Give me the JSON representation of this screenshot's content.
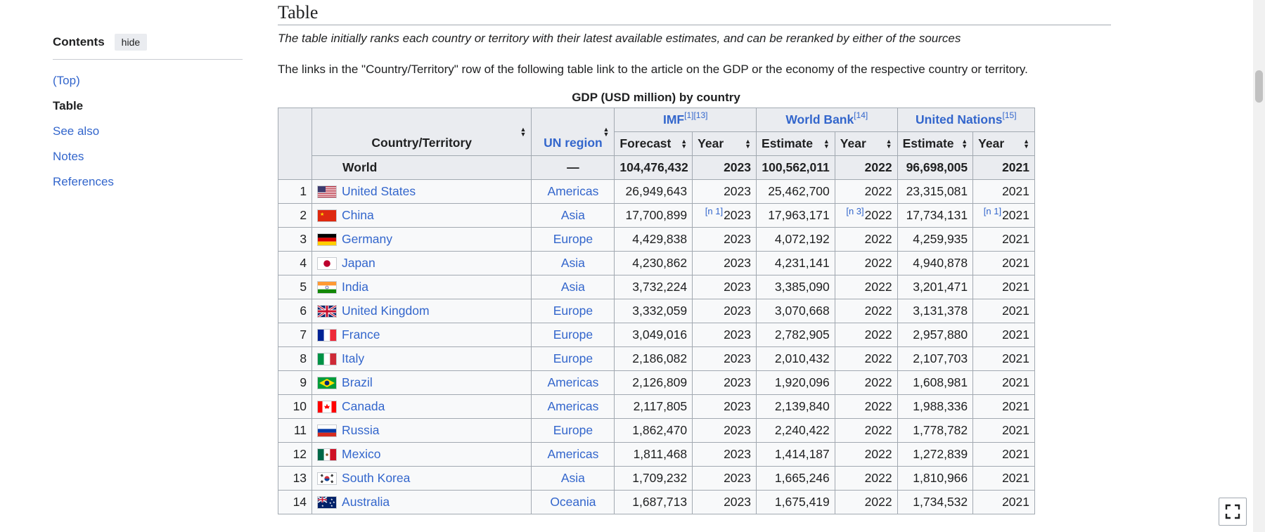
{
  "toc": {
    "title": "Contents",
    "hide_label": "hide",
    "items": [
      {
        "label": "(Top)",
        "state": "normal"
      },
      {
        "label": "Table",
        "state": "active"
      },
      {
        "label": "See also",
        "state": "normal"
      },
      {
        "label": "Notes",
        "state": "normal"
      },
      {
        "label": "References",
        "state": "normal"
      }
    ]
  },
  "article": {
    "heading": "Table",
    "hatnote": "The table initially ranks each country or territory with their latest available estimates, and can be reranked by either of the sources",
    "intro": "The links in the \"Country/Territory\" row of the following table link to the article on the GDP or the economy of the respective country or territory.",
    "caption": "GDP (USD million) by country"
  },
  "table": {
    "headers": {
      "country": "Country/Territory",
      "region": "UN region",
      "imf": "IMF",
      "imf_refs": "[1][13]",
      "wb": "World Bank",
      "wb_refs": "[14]",
      "un": "United Nations",
      "un_refs": "[15]",
      "imf_value": "Forecast",
      "wb_value": "Estimate",
      "un_value": "Estimate",
      "year": "Year"
    },
    "world": {
      "country": "World",
      "region": "—",
      "imf": "104,476,432",
      "imf_year": "2023",
      "wb": "100,562,011",
      "wb_year": "2022",
      "un": "96,698,005",
      "un_year": "2021"
    },
    "rows": [
      {
        "rank": "1",
        "flag": "us",
        "country": "United States",
        "region": "Americas",
        "imf": "26,949,643",
        "imf_note": "",
        "imf_year": "2023",
        "wb": "25,462,700",
        "wb_note": "",
        "wb_year": "2022",
        "un": "23,315,081",
        "un_note": "",
        "un_year": "2021"
      },
      {
        "rank": "2",
        "flag": "cn",
        "country": "China",
        "region": "Asia",
        "imf": "17,700,899",
        "imf_note": "[n 1]",
        "imf_year": "2023",
        "wb": "17,963,171",
        "wb_note": "[n 3]",
        "wb_year": "2022",
        "un": "17,734,131",
        "un_note": "[n 1]",
        "un_year": "2021"
      },
      {
        "rank": "3",
        "flag": "de",
        "country": "Germany",
        "region": "Europe",
        "imf": "4,429,838",
        "imf_note": "",
        "imf_year": "2023",
        "wb": "4,072,192",
        "wb_note": "",
        "wb_year": "2022",
        "un": "4,259,935",
        "un_note": "",
        "un_year": "2021"
      },
      {
        "rank": "4",
        "flag": "jp",
        "country": "Japan",
        "region": "Asia",
        "imf": "4,230,862",
        "imf_note": "",
        "imf_year": "2023",
        "wb": "4,231,141",
        "wb_note": "",
        "wb_year": "2022",
        "un": "4,940,878",
        "un_note": "",
        "un_year": "2021"
      },
      {
        "rank": "5",
        "flag": "in",
        "country": "India",
        "region": "Asia",
        "imf": "3,732,224",
        "imf_note": "",
        "imf_year": "2023",
        "wb": "3,385,090",
        "wb_note": "",
        "wb_year": "2022",
        "un": "3,201,471",
        "un_note": "",
        "un_year": "2021"
      },
      {
        "rank": "6",
        "flag": "gb",
        "country": "United Kingdom",
        "region": "Europe",
        "imf": "3,332,059",
        "imf_note": "",
        "imf_year": "2023",
        "wb": "3,070,668",
        "wb_note": "",
        "wb_year": "2022",
        "un": "3,131,378",
        "un_note": "",
        "un_year": "2021"
      },
      {
        "rank": "7",
        "flag": "fr",
        "country": "France",
        "region": "Europe",
        "imf": "3,049,016",
        "imf_note": "",
        "imf_year": "2023",
        "wb": "2,782,905",
        "wb_note": "",
        "wb_year": "2022",
        "un": "2,957,880",
        "un_note": "",
        "un_year": "2021"
      },
      {
        "rank": "8",
        "flag": "it",
        "country": "Italy",
        "region": "Europe",
        "imf": "2,186,082",
        "imf_note": "",
        "imf_year": "2023",
        "wb": "2,010,432",
        "wb_note": "",
        "wb_year": "2022",
        "un": "2,107,703",
        "un_note": "",
        "un_year": "2021"
      },
      {
        "rank": "9",
        "flag": "br",
        "country": "Brazil",
        "region": "Americas",
        "imf": "2,126,809",
        "imf_note": "",
        "imf_year": "2023",
        "wb": "1,920,096",
        "wb_note": "",
        "wb_year": "2022",
        "un": "1,608,981",
        "un_note": "",
        "un_year": "2021"
      },
      {
        "rank": "10",
        "flag": "ca",
        "country": "Canada",
        "region": "Americas",
        "imf": "2,117,805",
        "imf_note": "",
        "imf_year": "2023",
        "wb": "2,139,840",
        "wb_note": "",
        "wb_year": "2022",
        "un": "1,988,336",
        "un_note": "",
        "un_year": "2021"
      },
      {
        "rank": "11",
        "flag": "ru",
        "country": "Russia",
        "region": "Europe",
        "imf": "1,862,470",
        "imf_note": "",
        "imf_year": "2023",
        "wb": "2,240,422",
        "wb_note": "",
        "wb_year": "2022",
        "un": "1,778,782",
        "un_note": "",
        "un_year": "2021"
      },
      {
        "rank": "12",
        "flag": "mx",
        "country": "Mexico",
        "region": "Americas",
        "imf": "1,811,468",
        "imf_note": "",
        "imf_year": "2023",
        "wb": "1,414,187",
        "wb_note": "",
        "wb_year": "2022",
        "un": "1,272,839",
        "un_note": "",
        "un_year": "2021"
      },
      {
        "rank": "13",
        "flag": "kr",
        "country": "South Korea",
        "region": "Asia",
        "imf": "1,709,232",
        "imf_note": "",
        "imf_year": "2023",
        "wb": "1,665,246",
        "wb_note": "",
        "wb_year": "2022",
        "un": "1,810,966",
        "un_note": "",
        "un_year": "2021"
      },
      {
        "rank": "14",
        "flag": "au",
        "country": "Australia",
        "region": "Oceania",
        "imf": "1,687,713",
        "imf_note": "",
        "imf_year": "2023",
        "wb": "1,675,419",
        "wb_note": "",
        "wb_year": "2022",
        "un": "1,734,532",
        "un_note": "",
        "un_year": "2021"
      }
    ]
  },
  "icons": {
    "sort": "sort-icon",
    "fullscreen": "fullscreen-icon"
  }
}
